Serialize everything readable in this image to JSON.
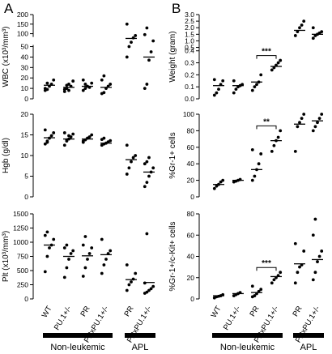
{
  "panel_labels": [
    "A",
    "B"
  ],
  "groups": [
    {
      "name": "Non-leukemic",
      "categories": [
        "WT",
        "PU.1+/-",
        "PR",
        "PRxPU.1+/-"
      ]
    },
    {
      "name": "APL",
      "categories": [
        "PR",
        "PRxPU.1+/-"
      ]
    }
  ],
  "chart_data": [
    {
      "type": "scatter",
      "panel": "A",
      "id": "wbc",
      "ylabel": "WBC (x10³/mm³)",
      "y_ticks": [
        "0",
        "10",
        "20",
        "30",
        "40",
        "50",
        "100",
        "150",
        "200"
      ],
      "axis_break": "between 50 and 100",
      "categories": [
        "WT",
        "PU.1+/-",
        "PR",
        "PRxPU.1+/-",
        "PR",
        "PRxPU.1+/-"
      ],
      "points": [
        [
          8,
          15,
          12,
          14,
          18,
          10,
          9
        ],
        [
          7,
          10,
          14,
          12,
          17,
          9,
          13,
          8
        ],
        [
          8,
          10,
          12,
          11,
          15,
          18,
          14
        ],
        [
          5,
          6,
          10,
          12,
          14,
          18,
          22
        ],
        [
          40,
          50,
          55,
          78,
          90,
          150
        ],
        [
          10,
          14,
          37,
          45,
          62,
          95,
          130
        ]
      ],
      "medians": [
        13,
        11,
        12,
        11,
        75,
        40
      ]
    },
    {
      "type": "scatter",
      "panel": "A",
      "id": "hgb",
      "ylabel": "Hgb (g/dl)",
      "ylim": [
        0,
        20
      ],
      "y_ticks": [
        "0",
        "5",
        "10",
        "15",
        "20"
      ],
      "categories": [
        "WT",
        "PU.1+/-",
        "PR",
        "PRxPU.1+/-",
        "PR",
        "PRxPU.1+/-"
      ],
      "points": [
        [
          12.8,
          13.5,
          14.2,
          14.8,
          15.5,
          16.2,
          13.2
        ],
        [
          12.5,
          13.5,
          14,
          14.5,
          15.2,
          15.5,
          13.8,
          14.8
        ],
        [
          13.5,
          13.8,
          14.2,
          14.5,
          15,
          13.2
        ],
        [
          12.5,
          12.8,
          13,
          13.3,
          13.6,
          13.9,
          14.2
        ],
        [
          5.5,
          7,
          8.5,
          9.5,
          10,
          12.5
        ],
        [
          2.5,
          3.5,
          5,
          6,
          7,
          8,
          8.5,
          9.5
        ]
      ],
      "medians": [
        14.3,
        14,
        14,
        13,
        9,
        6
      ]
    },
    {
      "type": "scatter",
      "panel": "A",
      "id": "plt",
      "ylabel": "Plt (x10³/mm³)",
      "ylim": [
        0,
        1500
      ],
      "y_ticks": [
        "0",
        "250",
        "500",
        "750",
        "1000",
        "1250",
        "1500"
      ],
      "categories": [
        "WT",
        "PU.1+/-",
        "PR",
        "PRxPU.1+/-",
        "PR",
        "PRxPU.1+/-"
      ],
      "points": [
        [
          480,
          750,
          900,
          950,
          1050,
          1120,
          1180
        ],
        [
          380,
          550,
          700,
          800,
          850,
          900,
          950
        ],
        [
          400,
          550,
          700,
          800,
          900,
          950,
          1100
        ],
        [
          450,
          600,
          700,
          800,
          850,
          1050
        ],
        [
          150,
          250,
          300,
          350,
          450,
          600
        ],
        [
          100,
          120,
          150,
          180,
          220,
          280,
          1150
        ]
      ],
      "medians": [
        950,
        750,
        760,
        780,
        340,
        290
      ]
    },
    {
      "type": "scatter",
      "panel": "B",
      "id": "weight",
      "ylabel": "Weight (gram)",
      "y_ticks": [
        "0.0",
        "0.1",
        "0.2",
        "0.3",
        "0.4",
        "0.5",
        "1.0",
        "1.5",
        "2.0",
        "2.5",
        "3.0"
      ],
      "axis_break": "between 0.4 and 0.5",
      "categories": [
        "WT",
        "PU.1+/-",
        "PR",
        "PRxPU.1+/-",
        "PR",
        "PRxPU.1+/-"
      ],
      "points": [
        [
          0.03,
          0.05,
          0.08,
          0.12,
          0.15,
          0.16
        ],
        [
          0.05,
          0.08,
          0.1,
          0.11,
          0.12,
          0.15
        ],
        [
          0.07,
          0.1,
          0.12,
          0.14,
          0.2
        ],
        [
          0.24,
          0.26,
          0.28,
          0.3,
          0.32
        ],
        [
          1.4,
          1.7,
          2.0,
          2.2,
          2.5
        ],
        [
          1.2,
          1.4,
          1.5,
          1.6,
          1.7,
          2.0
        ]
      ],
      "medians": [
        0.11,
        0.11,
        0.14,
        0.27,
        1.8,
        1.5
      ],
      "significance": [
        {
          "between": [
            2,
            3
          ],
          "label": "***"
        }
      ]
    },
    {
      "type": "scatter",
      "panel": "B",
      "id": "gr1",
      "ylabel": "%Gr-1+ cells",
      "ylim": [
        0,
        100
      ],
      "y_ticks": [
        "0",
        "20",
        "40",
        "60",
        "80",
        "100"
      ],
      "categories": [
        "WT",
        "PU.1+/-",
        "PR",
        "PRxPU.1+/-",
        "PR",
        "PRxPU.1+/-"
      ],
      "points": [
        [
          10,
          13,
          15,
          18,
          20
        ],
        [
          18,
          19,
          20,
          21
        ],
        [
          20,
          25,
          33,
          40,
          52,
          57
        ],
        [
          55,
          62,
          68,
          72,
          80
        ],
        [
          55,
          85,
          90,
          95,
          100
        ],
        [
          80,
          85,
          90,
          95,
          100
        ]
      ],
      "medians": [
        15,
        20,
        33,
        68,
        88,
        92
      ],
      "significance": [
        {
          "between": [
            2,
            3
          ],
          "label": "**"
        }
      ]
    },
    {
      "type": "scatter",
      "panel": "B",
      "id": "gr1kit",
      "ylabel": "%Gr-1+/c-Kit+ cells",
      "ylim": [
        0,
        80
      ],
      "y_ticks": [
        "0",
        "20",
        "40",
        "60",
        "80"
      ],
      "categories": [
        "WT",
        "PU.1+/-",
        "PR",
        "PRxPU.1+/-",
        "PR",
        "PRxPU.1+/-"
      ],
      "points": [
        [
          1,
          2,
          2.5,
          3,
          4
        ],
        [
          3,
          4,
          5,
          6
        ],
        [
          2,
          3,
          5,
          7,
          9,
          12
        ],
        [
          15,
          18,
          20,
          22,
          25
        ],
        [
          15,
          25,
          30,
          32,
          45,
          52
        ],
        [
          18,
          25,
          35,
          40,
          45,
          60,
          75
        ]
      ],
      "medians": [
        3,
        5,
        6,
        21,
        33,
        37
      ],
      "significance": [
        {
          "between": [
            2,
            3
          ],
          "label": "***"
        }
      ]
    }
  ]
}
